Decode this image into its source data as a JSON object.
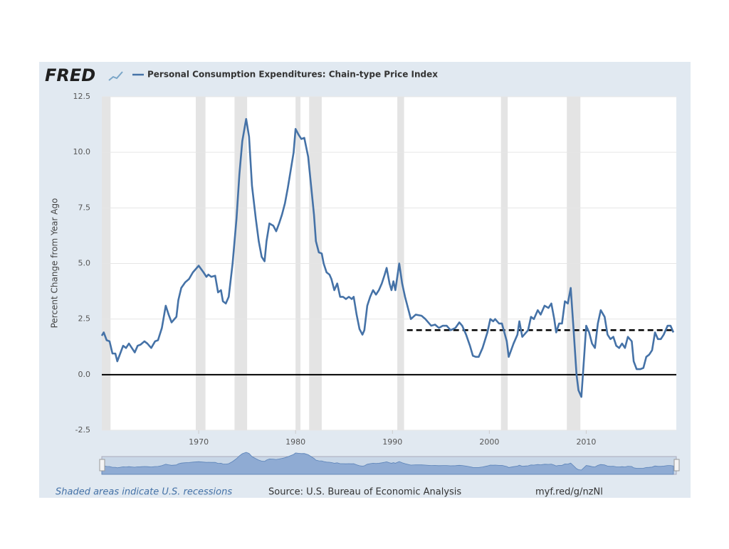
{
  "chart_data": {
    "type": "line",
    "logo": "FRED",
    "y_label": "Percent Change from Year Ago",
    "footer_left": "Shaded areas indicate U.S. recessions",
    "footer_source": "Source: U.S. Bureau of Economic Analysis",
    "footer_link": "myf.red/g/nzNl",
    "xlim": [
      1960,
      2019.3
    ],
    "xticks": [
      1970,
      1980,
      1990,
      2000,
      2010
    ],
    "ylim": [
      -2.5,
      12.5
    ],
    "yticks": [
      12.5,
      {
        "value": 10,
        "label": "10.0"
      },
      7.5,
      {
        "value": 5,
        "label": "5.0"
      },
      2.5,
      {
        "value": 0,
        "label": "0.0"
      },
      -2.5
    ],
    "grid": true,
    "baseline": 0,
    "reference_line": {
      "value": 2,
      "x": [
        1991.5,
        2019.2
      ]
    },
    "recessions": [
      [
        1960.0,
        1960.9
      ],
      [
        1969.7,
        1970.7
      ],
      [
        1973.7,
        1975.0
      ],
      [
        1980.0,
        1980.5
      ],
      [
        1981.4,
        1982.7
      ],
      [
        1990.5,
        1991.2
      ],
      [
        2001.2,
        2001.9
      ],
      [
        2008.0,
        2009.4
      ]
    ],
    "recession_color": "#e4e4e4",
    "series": [
      {
        "name": "Personal Consumption Expenditures: Chain-type Price Index",
        "color": "#4572a7",
        "x": [
          1960.0,
          1960.2,
          1960.5,
          1960.8,
          1961.1,
          1961.4,
          1961.6,
          1961.9,
          1962.2,
          1962.5,
          1962.8,
          1963.1,
          1963.4,
          1963.7,
          1964.0,
          1964.4,
          1964.7,
          1965.1,
          1965.5,
          1965.8,
          1966.2,
          1966.6,
          1966.9,
          1967.2,
          1967.7,
          1967.9,
          1968.2,
          1968.6,
          1969.0,
          1969.4,
          1970.0,
          1970.5,
          1970.8,
          1971.0,
          1971.3,
          1971.7,
          1972.0,
          1972.3,
          1972.5,
          1972.8,
          1973.1,
          1973.5,
          1973.9,
          1974.2,
          1974.5,
          1974.9,
          1975.2,
          1975.5,
          1975.9,
          1976.2,
          1976.5,
          1976.8,
          1977.0,
          1977.3,
          1977.7,
          1978.0,
          1978.3,
          1978.6,
          1978.9,
          1979.2,
          1979.5,
          1979.8,
          1980.0,
          1980.3,
          1980.6,
          1980.9,
          1981.3,
          1981.6,
          1981.9,
          1982.1,
          1982.4,
          1982.7,
          1982.9,
          1983.2,
          1983.5,
          1983.7,
          1984.0,
          1984.3,
          1984.6,
          1984.9,
          1985.2,
          1985.5,
          1985.8,
          1986.0,
          1986.3,
          1986.6,
          1986.9,
          1987.1,
          1987.4,
          1987.7,
          1988.0,
          1988.3,
          1988.6,
          1988.9,
          1989.2,
          1989.4,
          1989.7,
          1989.9,
          1990.1,
          1990.3,
          1990.7,
          1991.0,
          1991.3,
          1991.9,
          1992.4,
          1993.0,
          1993.4,
          1994.0,
          1994.4,
          1994.8,
          1995.2,
          1995.6,
          1996.0,
          1996.5,
          1996.9,
          1997.2,
          1997.6,
          1998.0,
          1998.3,
          1998.6,
          1998.9,
          1999.3,
          1999.8,
          2000.1,
          2000.4,
          2000.6,
          2001.0,
          2001.3,
          2001.8,
          2002.0,
          2002.5,
          2002.9,
          2003.1,
          2003.4,
          2003.8,
          2004.0,
          2004.3,
          2004.6,
          2005.0,
          2005.3,
          2005.7,
          2006.1,
          2006.4,
          2006.7,
          2006.9,
          2007.2,
          2007.5,
          2007.8,
          2008.1,
          2008.4,
          2008.7,
          2009.0,
          2009.2,
          2009.5,
          2009.8,
          2010.0,
          2010.3,
          2010.6,
          2010.9,
          2011.2,
          2011.5,
          2011.9,
          2012.2,
          2012.5,
          2012.8,
          2013.1,
          2013.4,
          2013.7,
          2014.0,
          2014.3,
          2014.7,
          2014.9,
          2015.2,
          2015.6,
          2015.9,
          2016.2,
          2016.5,
          2016.8,
          2017.1,
          2017.4,
          2017.7,
          2018.0,
          2018.4,
          2018.7,
          2019.0
        ],
        "values": [
          1.75,
          1.9,
          1.55,
          1.5,
          0.95,
          0.95,
          0.6,
          0.95,
          1.3,
          1.2,
          1.4,
          1.2,
          1.0,
          1.3,
          1.35,
          1.5,
          1.4,
          1.2,
          1.5,
          1.55,
          2.1,
          3.1,
          2.7,
          2.35,
          2.6,
          3.35,
          3.9,
          4.15,
          4.3,
          4.6,
          4.9,
          4.6,
          4.4,
          4.5,
          4.4,
          4.45,
          3.7,
          3.8,
          3.3,
          3.2,
          3.5,
          5.0,
          7.0,
          9.0,
          10.5,
          11.5,
          10.7,
          8.5,
          7.0,
          6.0,
          5.3,
          5.1,
          6.0,
          6.8,
          6.7,
          6.45,
          6.8,
          7.2,
          7.7,
          8.4,
          9.2,
          10.0,
          11.05,
          10.8,
          10.6,
          10.65,
          9.8,
          8.5,
          7.2,
          6.0,
          5.5,
          5.45,
          5.0,
          4.6,
          4.5,
          4.3,
          3.8,
          4.1,
          3.5,
          3.5,
          3.4,
          3.5,
          3.4,
          3.5,
          2.7,
          2.05,
          1.8,
          2.0,
          3.1,
          3.5,
          3.8,
          3.6,
          3.8,
          4.1,
          4.5,
          4.8,
          4.1,
          3.8,
          4.2,
          3.8,
          5.0,
          4.1,
          3.5,
          2.5,
          2.7,
          2.65,
          2.5,
          2.2,
          2.25,
          2.1,
          2.2,
          2.2,
          2.0,
          2.1,
          2.35,
          2.2,
          1.8,
          1.3,
          0.85,
          0.8,
          0.8,
          1.2,
          1.9,
          2.5,
          2.4,
          2.5,
          2.3,
          2.3,
          1.5,
          0.8,
          1.4,
          1.8,
          2.4,
          1.7,
          1.9,
          2.0,
          2.6,
          2.5,
          2.9,
          2.7,
          3.1,
          3.0,
          3.2,
          2.5,
          1.9,
          2.3,
          2.3,
          3.3,
          3.2,
          3.9,
          2.0,
          0.0,
          -0.7,
          -1.0,
          0.9,
          2.2,
          1.9,
          1.4,
          1.2,
          2.3,
          2.9,
          2.6,
          1.8,
          1.6,
          1.7,
          1.3,
          1.2,
          1.4,
          1.2,
          1.7,
          1.5,
          0.6,
          0.25,
          0.25,
          0.3,
          0.8,
          0.9,
          1.1,
          1.9,
          1.6,
          1.6,
          1.8,
          2.2,
          2.2,
          1.9
        ]
      }
    ]
  }
}
